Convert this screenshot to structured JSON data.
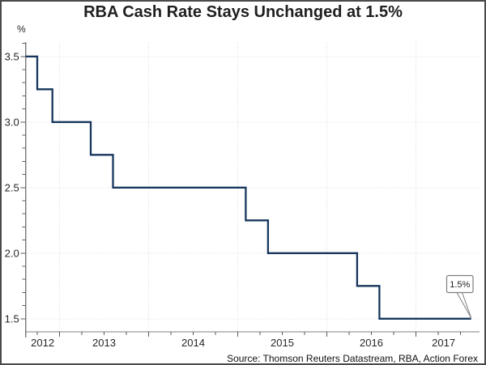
{
  "chart_data": {
    "type": "line",
    "subtype": "step",
    "title": "RBA Cash Rate Stays Unchanged at 1.5%",
    "y_unit": "%",
    "source": "Source: Thomson Reuters Datastream, RBA, Action Forex",
    "x_domain": [
      2012.62,
      2017.62
    ],
    "ylim": [
      1.4,
      3.61
    ],
    "x_labels": [
      "2012",
      "2013",
      "2014",
      "2015",
      "2016",
      "2017"
    ],
    "x_tick_years_major": [
      2013,
      2014,
      2015,
      2016,
      2017
    ],
    "x_minor_tick_step_years": 0.25,
    "y_ticks_major": [
      3.5,
      3.0,
      2.5,
      2.0,
      1.5
    ],
    "y_tick_labels": [
      "3.5",
      "3.0",
      "2.5",
      "2.0",
      "1.5"
    ],
    "y_minor_tick_step": 0.1,
    "grid": "dotted gridlines at major ticks, both axes",
    "legend": "none",
    "series": [
      {
        "name": "RBA cash rate (%)",
        "points": [
          {
            "t": 2012.62,
            "v": 3.5
          },
          {
            "t": 2012.75,
            "v": 3.25
          },
          {
            "t": 2012.92,
            "v": 3.0
          },
          {
            "t": 2013.35,
            "v": 2.75
          },
          {
            "t": 2013.6,
            "v": 2.5
          },
          {
            "t": 2015.09,
            "v": 2.25
          },
          {
            "t": 2015.34,
            "v": 2.0
          },
          {
            "t": 2016.34,
            "v": 1.75
          },
          {
            "t": 2016.59,
            "v": 1.5
          }
        ],
        "end_t": 2017.62,
        "end_v": 1.5
      }
    ],
    "annotation": {
      "label": "1.5%",
      "v": 1.5
    },
    "colors": {
      "line": "#17375E",
      "grid": "#D9D9D9",
      "axis": "#808080",
      "tick": "#595959",
      "tick_text": "#262626",
      "title_text": "#1F1F1F",
      "annotation_border": "#7F7F7F",
      "frame_border": "#4A4A4A",
      "background": "#FFFFFF"
    }
  }
}
